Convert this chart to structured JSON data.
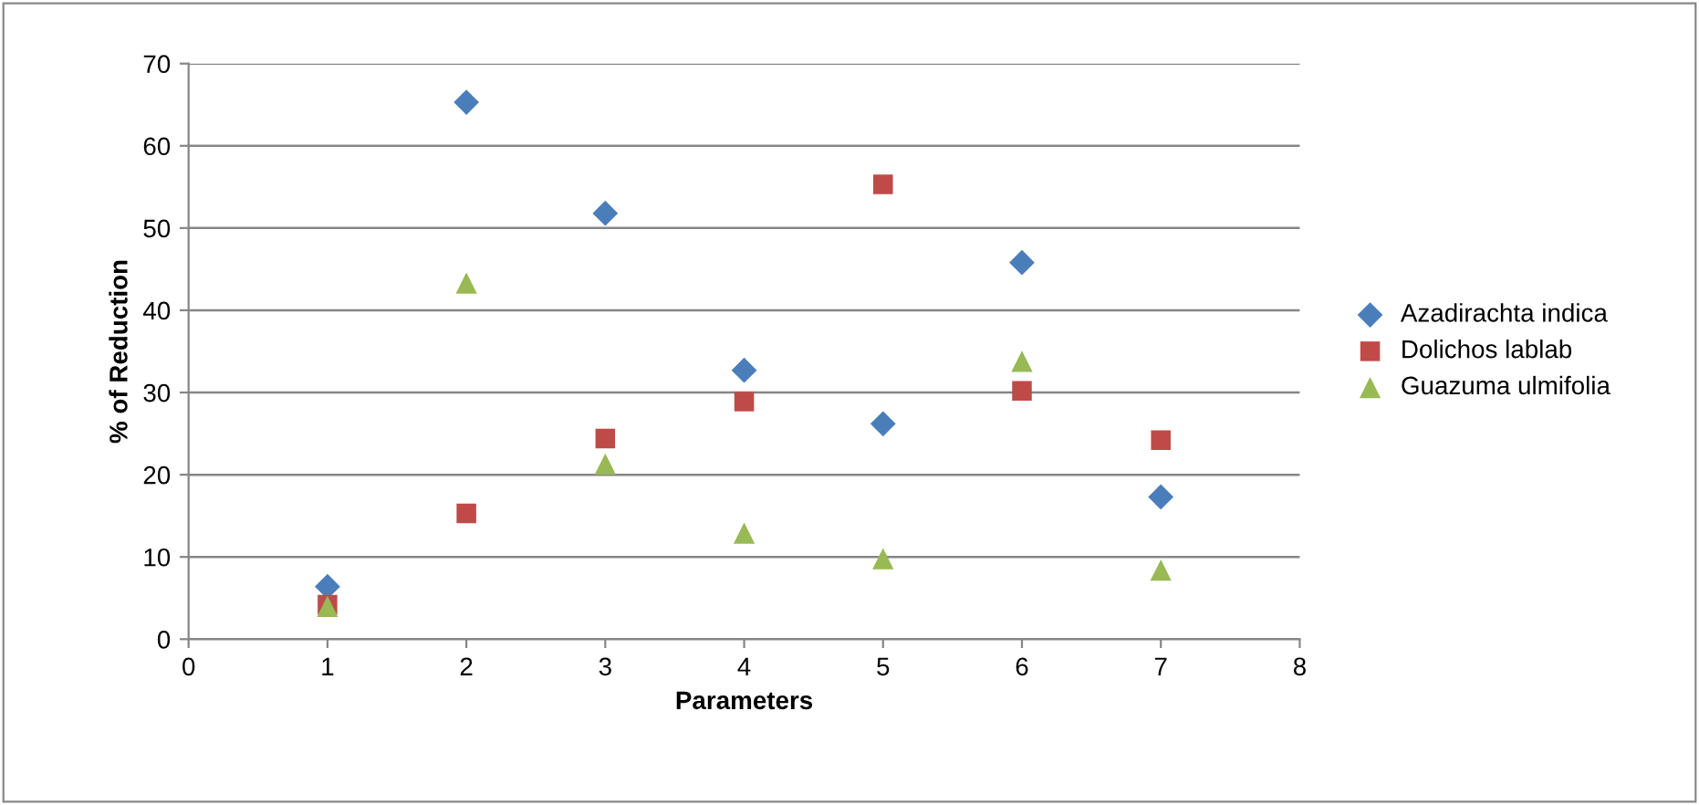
{
  "chart_data": {
    "type": "scatter",
    "xlabel": "Parameters",
    "ylabel": "% of Reduction",
    "x": [
      1,
      2,
      3,
      4,
      5,
      6,
      7
    ],
    "series": [
      {
        "name": "Azadirachta indica",
        "color": "#4a7ebb",
        "marker": "diamond",
        "values": [
          6.4,
          65.3,
          51.8,
          32.7,
          26.2,
          45.8,
          17.3
        ]
      },
      {
        "name": "Dolichos lablab",
        "color": "#be4b48",
        "marker": "square",
        "values": [
          4.2,
          15.3,
          24.4,
          28.9,
          55.3,
          30.2,
          24.2
        ]
      },
      {
        "name": "Guazuma ulmifolia",
        "color": "#98b954",
        "marker": "triangle",
        "values": [
          4.0,
          43.3,
          21.3,
          12.9,
          9.8,
          33.8,
          8.4
        ]
      }
    ],
    "xlim": [
      0,
      8
    ],
    "xticks": [
      0,
      1,
      2,
      3,
      4,
      5,
      6,
      7,
      8
    ],
    "ylim": [
      0,
      70
    ],
    "yticks": [
      0,
      10,
      20,
      30,
      40,
      50,
      60,
      70
    ],
    "grid": "y",
    "legend": "right"
  }
}
